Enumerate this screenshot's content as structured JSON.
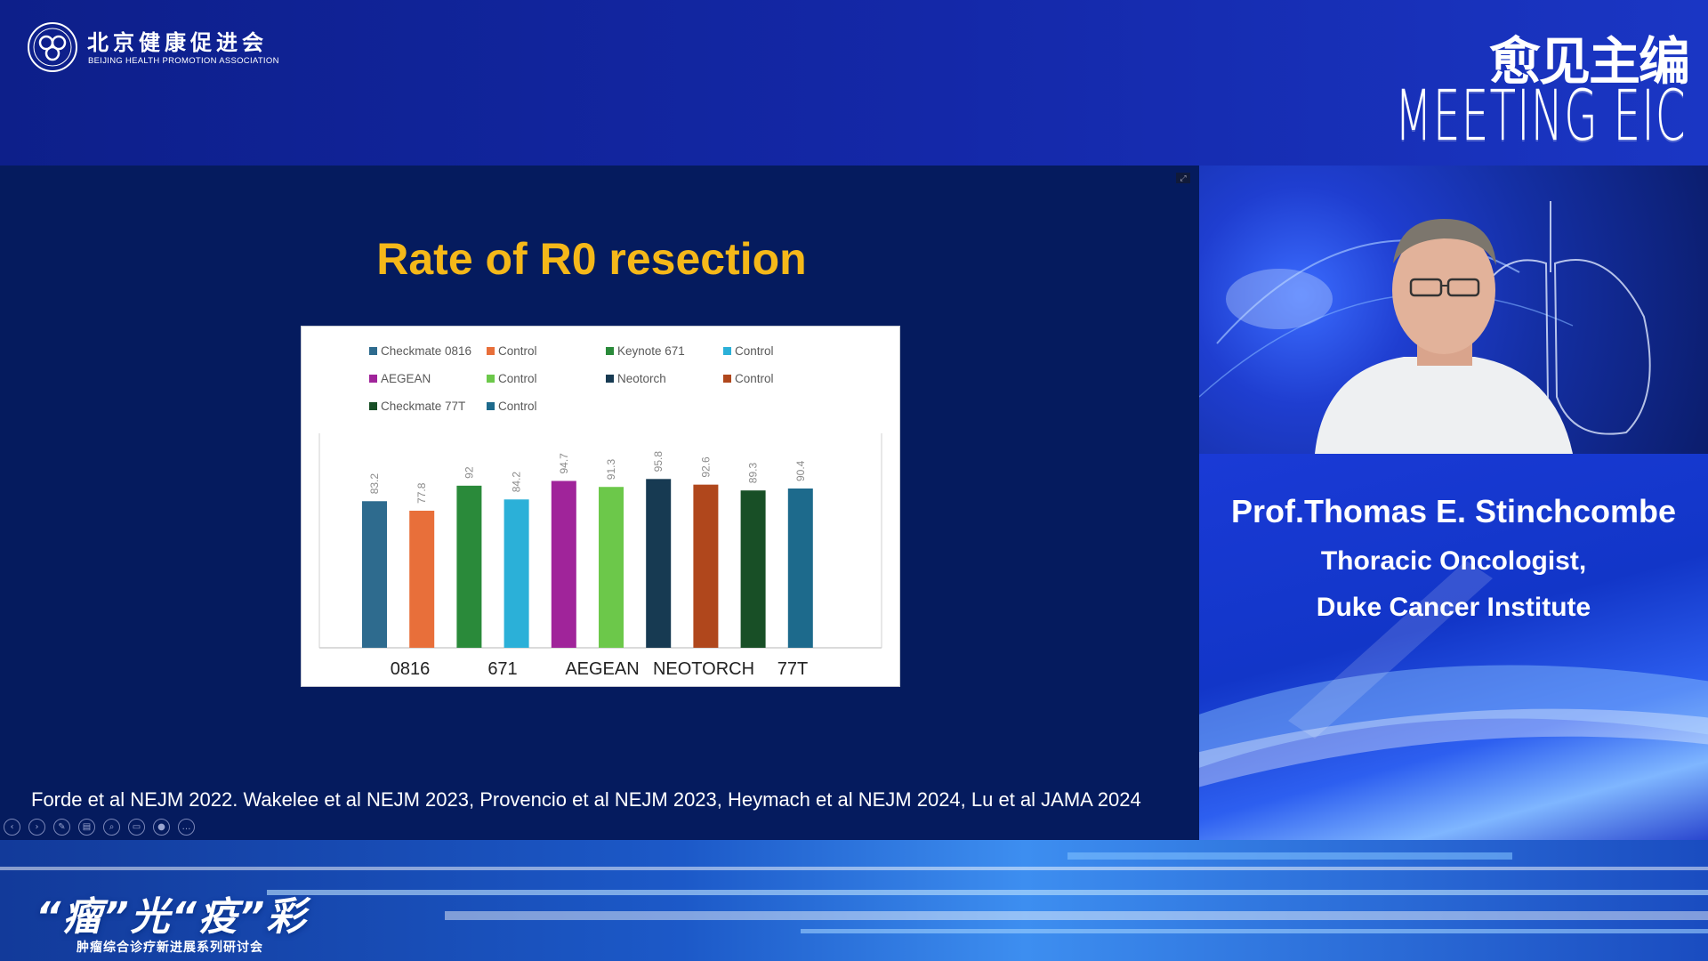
{
  "header": {
    "org_name_cn": "北京健康促进会",
    "org_name_en": "BEIJING HEALTH PROMOTION ASSOCIATION",
    "brand_cn": "愈见主编",
    "brand_en": "MEETING EIC"
  },
  "slide": {
    "title": "Rate of R0 resection",
    "citation": "Forde et al NEJM 2022. Wakelee et al NEJM 2023, Provencio et al NEJM 2023, Heymach et al NEJM 2024, Lu et al JAMA 2024",
    "toolbar": [
      {
        "name": "prev-icon",
        "glyph": "‹"
      },
      {
        "name": "next-icon",
        "glyph": "›"
      },
      {
        "name": "pen-icon",
        "glyph": "✎"
      },
      {
        "name": "slides-icon",
        "glyph": "▤"
      },
      {
        "name": "zoom-icon",
        "glyph": "⌕"
      },
      {
        "name": "subtitles-icon",
        "glyph": "▭"
      },
      {
        "name": "camera-icon",
        "glyph": "●"
      },
      {
        "name": "more-icon",
        "glyph": "…"
      }
    ]
  },
  "chart_data": {
    "type": "bar",
    "title": "",
    "xlabel": "",
    "ylabel": "",
    "ylim": [
      0,
      100
    ],
    "grid": false,
    "legend_position": "top",
    "series": [
      {
        "name": "Checkmate 0816",
        "value": 83.2,
        "color": "#2e6b8e"
      },
      {
        "name": "Control",
        "value": 77.8,
        "color": "#e86f3a"
      },
      {
        "name": "Keynote 671",
        "value": 92,
        "color": "#2a8a3a"
      },
      {
        "name": "Control",
        "value": 84.2,
        "color": "#2bb0d8"
      },
      {
        "name": "AEGEAN",
        "value": 94.7,
        "color": "#a0249a"
      },
      {
        "name": "Control",
        "value": 91.3,
        "color": "#6cc84a"
      },
      {
        "name": "Neotorch",
        "value": 95.8,
        "color": "#173a52"
      },
      {
        "name": "Control",
        "value": 92.6,
        "color": "#b0471c"
      },
      {
        "name": "Checkmate 77T",
        "value": 89.3,
        "color": "#184f26"
      },
      {
        "name": "Control",
        "value": 90.4,
        "color": "#1d6a8c"
      }
    ],
    "group_labels": [
      "0816",
      "671",
      "AEGEAN",
      "NEOTORCH",
      "77T"
    ]
  },
  "speaker": {
    "name": "Prof.Thomas E. Stinchcombe",
    "title": "Thoracic Oncologist,",
    "affiliation": "Duke Cancer Institute"
  },
  "footer": {
    "event_title": "“瘤”光“疫”彩",
    "event_subtitle": "肿瘤综合诊疗新进展系列研讨会"
  }
}
